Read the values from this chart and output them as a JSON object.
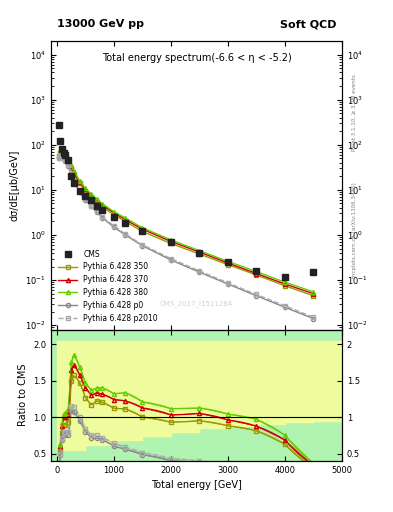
{
  "title_top": "13000 GeV pp",
  "title_right": "Soft QCD",
  "plot_title": "Total energy spectrum(-6.6 < η < -5.2)",
  "ylabel_top": "dσ/dE[µb/GeV]",
  "ylabel_bottom": "Ratio to CMS",
  "xlabel": "Total energy [GeV]",
  "right_label_top": "Rivet 3.1.10, ≥ 3.2M events",
  "right_label_bottom": "mcplots.cern.ch [arXiv:1306.3436]",
  "watermark": "CMS_2017_I1511284",
  "cms_x": [
    30,
    60,
    90,
    120,
    150,
    200,
    250,
    300,
    400,
    500,
    600,
    700,
    800,
    1000,
    1200,
    1500,
    2000,
    2500,
    3000,
    3500,
    4000,
    4500
  ],
  "cms_y": [
    280,
    120,
    80,
    65,
    58,
    45,
    20,
    14,
    9.5,
    7.5,
    6.0,
    4.5,
    3.5,
    2.5,
    1.8,
    1.2,
    0.7,
    0.4,
    0.25,
    0.16,
    0.12,
    0.15
  ],
  "p350_x": [
    30,
    60,
    90,
    120,
    150,
    200,
    250,
    300,
    400,
    500,
    600,
    700,
    800,
    1000,
    1200,
    1500,
    2000,
    2500,
    3000,
    3500,
    4000,
    4500
  ],
  "p350_y": [
    55,
    65,
    62,
    58,
    52,
    42,
    30,
    22,
    14,
    9.5,
    7.0,
    5.5,
    4.2,
    2.8,
    2.0,
    1.2,
    0.65,
    0.38,
    0.22,
    0.13,
    0.075,
    0.045
  ],
  "p370_x": [
    30,
    60,
    90,
    120,
    150,
    200,
    250,
    300,
    400,
    500,
    600,
    700,
    800,
    1000,
    1200,
    1500,
    2000,
    2500,
    3000,
    3500,
    4000,
    4500
  ],
  "p370_y": [
    55,
    72,
    70,
    65,
    58,
    47,
    33,
    24,
    15,
    10.5,
    7.8,
    6.0,
    4.6,
    3.1,
    2.2,
    1.35,
    0.72,
    0.42,
    0.24,
    0.14,
    0.082,
    0.05
  ],
  "p380_x": [
    30,
    60,
    90,
    120,
    150,
    200,
    250,
    300,
    400,
    500,
    600,
    700,
    800,
    1000,
    1200,
    1500,
    2000,
    2500,
    3000,
    3500,
    4000,
    4500
  ],
  "p380_y": [
    55,
    75,
    73,
    68,
    61,
    50,
    35,
    26,
    16,
    11,
    8.2,
    6.3,
    4.9,
    3.3,
    2.4,
    1.45,
    0.78,
    0.45,
    0.26,
    0.155,
    0.09,
    0.055
  ],
  "pp0_x": [
    30,
    60,
    90,
    120,
    150,
    200,
    250,
    300,
    400,
    500,
    600,
    700,
    800,
    1000,
    1200,
    1500,
    2000,
    2500,
    3000,
    3500,
    4000,
    4500
  ],
  "pp0_y": [
    50,
    58,
    55,
    50,
    44,
    34,
    22,
    15,
    9.0,
    6.0,
    4.3,
    3.2,
    2.4,
    1.5,
    1.0,
    0.58,
    0.28,
    0.15,
    0.082,
    0.045,
    0.025,
    0.014
  ],
  "pp2010_x": [
    30,
    60,
    90,
    120,
    150,
    200,
    250,
    300,
    400,
    500,
    600,
    700,
    800,
    1000,
    1200,
    1500,
    2000,
    2500,
    3000,
    3500,
    4000,
    4500
  ],
  "pp2010_y": [
    50,
    60,
    57,
    52,
    46,
    36,
    23,
    16,
    9.5,
    6.3,
    4.5,
    3.4,
    2.5,
    1.6,
    1.05,
    0.61,
    0.3,
    0.16,
    0.087,
    0.048,
    0.027,
    0.015
  ],
  "color_cms": "#222222",
  "color_p350": "#999900",
  "color_p370": "#cc0000",
  "color_p380": "#66cc00",
  "color_pp0": "#888888",
  "color_pp2010": "#aaaaaa",
  "bg_green": "#90ee90",
  "bg_yellow": "#ffff99",
  "ratio_ylim": [
    0.4,
    2.2
  ],
  "main_ylim": [
    0.008,
    20000
  ]
}
